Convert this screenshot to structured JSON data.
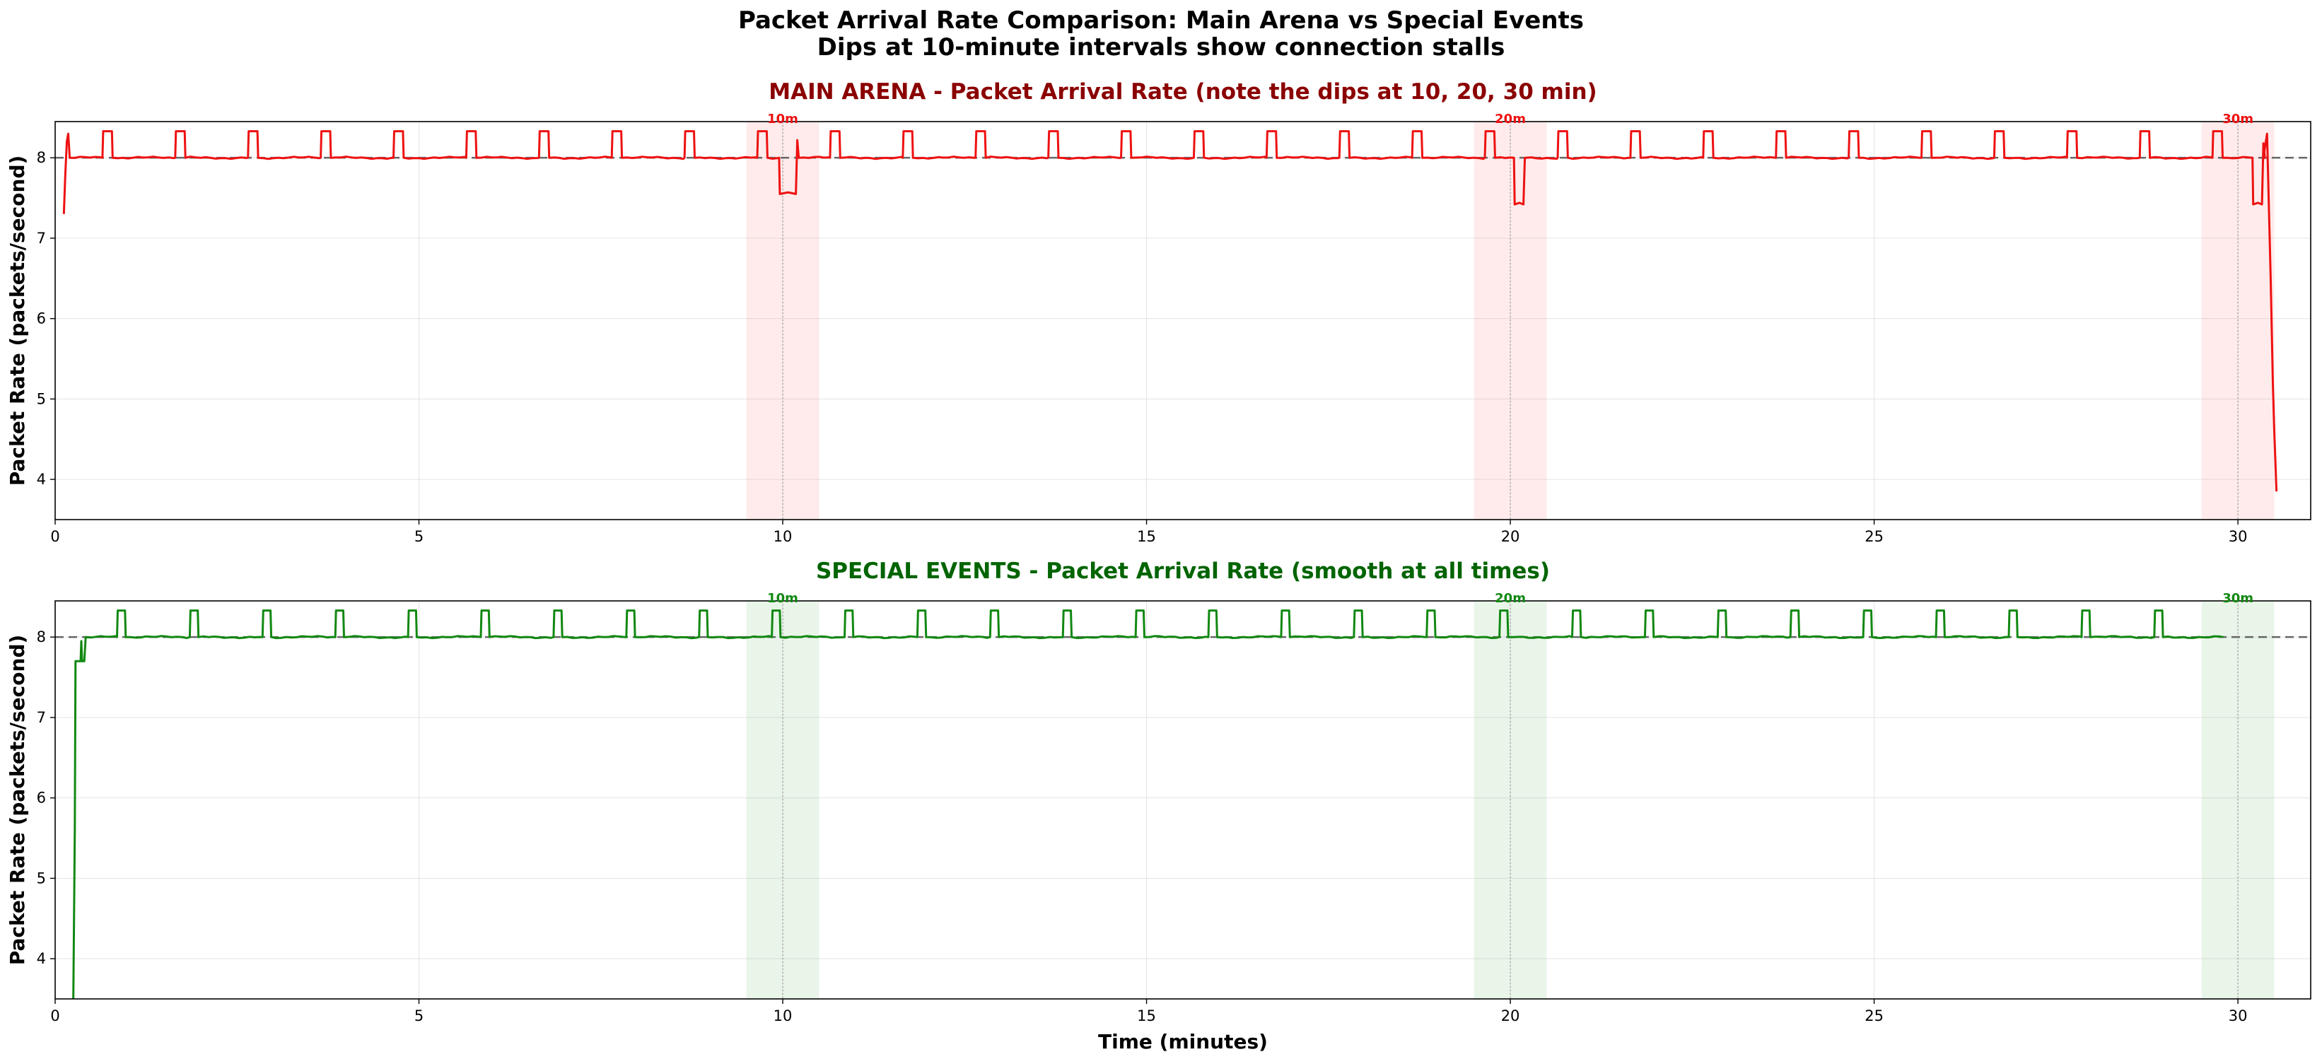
{
  "figure": {
    "title_line1": "Packet Arrival Rate Comparison: Main Arena vs Special Events",
    "title_line2": "Dips at 10-minute intervals show connection stalls"
  },
  "chart_data": [
    {
      "type": "line",
      "title": "MAIN ARENA - Packet Arrival Rate (note the dips at 10, 20, 30 min)",
      "title_color": "#8b0000",
      "xlabel": "",
      "ylabel": "Packet Rate (packets/second)",
      "xlim": [
        0,
        31
      ],
      "ylim": [
        3.5,
        8.45
      ],
      "xticks": [
        0,
        5,
        10,
        15,
        20,
        25,
        30
      ],
      "yticks": [
        4,
        5,
        6,
        7,
        8
      ],
      "grid": true,
      "reference_line": {
        "y": 8.0,
        "style": "dashed",
        "color": "#666666"
      },
      "series": [
        {
          "color": "#ee1111",
          "baseline": 8.0,
          "start": 0.12,
          "end": 30.5,
          "start_points": [
            [
              0.12,
              7.3
            ],
            [
              0.14,
              7.8
            ],
            [
              0.16,
              8.2
            ],
            [
              0.18,
              8.3
            ],
            [
              0.2,
              8.0
            ]
          ],
          "burst_starts": [
            0.65,
            1.65,
            2.65,
            3.65,
            4.65,
            5.65,
            6.65,
            7.65,
            8.65,
            9.65,
            10.65,
            11.65,
            12.65,
            13.65,
            14.65,
            15.65,
            16.65,
            17.65,
            18.65,
            19.65,
            20.65,
            21.65,
            22.65,
            23.65,
            24.65,
            25.65,
            26.65,
            27.65,
            28.65,
            29.65
          ],
          "burst_width": 0.14,
          "burst_height": 8.33,
          "dips": [
            {
              "x": 9.95,
              "width": 0.25,
              "low": 7.55,
              "recover": 8.22
            },
            {
              "x": 20.05,
              "width": 0.15,
              "low": 7.42,
              "recover": 8.0
            },
            {
              "x": 30.2,
              "width": 0.15,
              "low": 7.42,
              "recover": 8.18
            }
          ],
          "end_points": [
            [
              30.35,
              8.0
            ],
            [
              30.4,
              8.3
            ],
            [
              30.45,
              6.5
            ],
            [
              30.48,
              5.2
            ],
            [
              30.5,
              4.6
            ],
            [
              30.52,
              4.1
            ],
            [
              30.53,
              3.85
            ]
          ]
        }
      ],
      "highlight_bands": [
        {
          "from": 9.5,
          "to": 10.5,
          "color": "#ff3b3b",
          "opacity": 0.1,
          "center": 10,
          "label": "10m"
        },
        {
          "from": 19.5,
          "to": 20.5,
          "color": "#ff3b3b",
          "opacity": 0.1,
          "center": 20,
          "label": "20m"
        },
        {
          "from": 29.5,
          "to": 30.5,
          "color": "#ff3b3b",
          "opacity": 0.1,
          "center": 30,
          "label": "30m"
        }
      ],
      "marker_label_color": "#ee1111"
    },
    {
      "type": "line",
      "title": "SPECIAL EVENTS - Packet Arrival Rate (smooth at all times)",
      "title_color": "#006400",
      "xlabel": "Time (minutes)",
      "ylabel": "Packet Rate (packets/second)",
      "xlim": [
        0,
        31
      ],
      "ylim": [
        3.5,
        8.45
      ],
      "xticks": [
        0,
        5,
        10,
        15,
        20,
        25,
        30
      ],
      "yticks": [
        4,
        5,
        6,
        7,
        8
      ],
      "grid": true,
      "reference_line": {
        "y": 8.0,
        "style": "dashed",
        "color": "#666666"
      },
      "series": [
        {
          "color": "#118811",
          "baseline": 8.0,
          "start": 0.25,
          "end": 29.8,
          "start_points": [
            [
              0.25,
              3.5
            ],
            [
              0.27,
              5.6
            ],
            [
              0.28,
              7.7
            ],
            [
              0.35,
              7.7
            ],
            [
              0.36,
              7.95
            ],
            [
              0.37,
              7.7
            ],
            [
              0.4,
              7.7
            ],
            [
              0.42,
              8.0
            ]
          ],
          "burst_starts": [
            0.85,
            1.85,
            2.85,
            3.85,
            4.85,
            5.85,
            6.85,
            7.85,
            8.85,
            9.85,
            10.85,
            11.85,
            12.85,
            13.85,
            14.85,
            15.85,
            16.85,
            17.85,
            18.85,
            19.85,
            20.85,
            21.85,
            22.85,
            23.85,
            24.85,
            25.85,
            26.85,
            27.85,
            28.85
          ],
          "burst_width": 0.12,
          "burst_height": 8.33,
          "dips": [],
          "end_points": []
        }
      ],
      "highlight_bands": [
        {
          "from": 9.5,
          "to": 10.5,
          "color": "#2e9b2e",
          "opacity": 0.1,
          "center": 10,
          "label": "10m"
        },
        {
          "from": 19.5,
          "to": 20.5,
          "color": "#2e9b2e",
          "opacity": 0.1,
          "center": 20,
          "label": "20m"
        },
        {
          "from": 29.5,
          "to": 30.5,
          "color": "#2e9b2e",
          "opacity": 0.1,
          "center": 30,
          "label": "30m"
        }
      ],
      "marker_label_color": "#118811"
    }
  ]
}
